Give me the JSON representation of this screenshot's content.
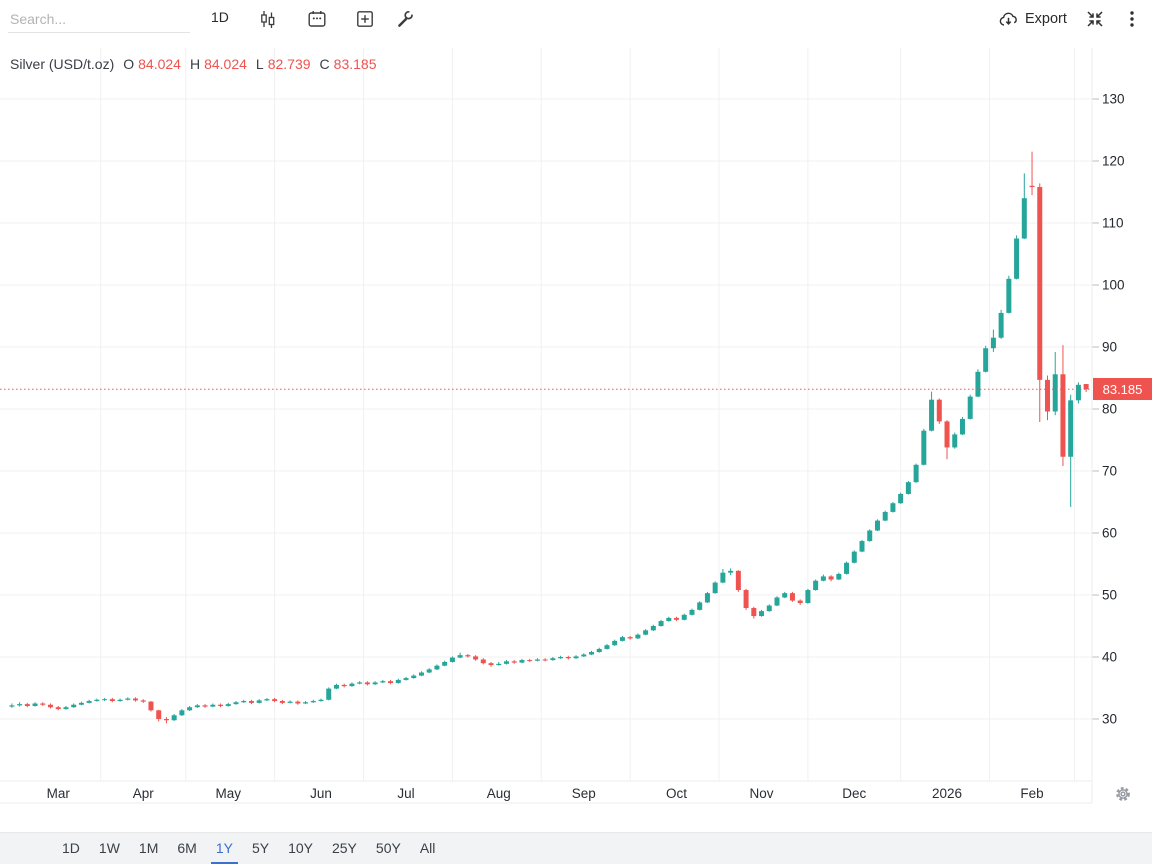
{
  "toolbar": {
    "search_placeholder": "Search...",
    "interval": "1D",
    "export_label": "Export",
    "icons": [
      "candlestick-chart-icon",
      "calendar-icon",
      "add-panel-icon",
      "tools-wrench-icon",
      "export-cloud-icon",
      "collapse-icon",
      "more-menu-icon",
      "settings-gear-icon"
    ]
  },
  "legend": {
    "symbol": "Silver (USD/t.oz)",
    "fields": [
      {
        "label": "O",
        "value": "84.024"
      },
      {
        "label": "H",
        "value": "84.024"
      },
      {
        "label": "L",
        "value": "82.739"
      },
      {
        "label": "C",
        "value": "83.185"
      }
    ]
  },
  "chart_data": {
    "type": "candlestick",
    "title": "Silver (USD/t.oz)",
    "interval": "1D",
    "timeframe": "1Y",
    "y_axis": {
      "side": "right",
      "ticks": [
        130,
        120,
        110,
        100,
        90,
        80,
        70,
        60,
        50,
        40,
        30
      ],
      "range": [
        20,
        132
      ]
    },
    "x_ticks": [
      {
        "label": "Mar",
        "i": 6
      },
      {
        "label": "Apr",
        "i": 17
      },
      {
        "label": "May",
        "i": 28
      },
      {
        "label": "Jun",
        "i": 40
      },
      {
        "label": "Jul",
        "i": 51
      },
      {
        "label": "Aug",
        "i": 63
      },
      {
        "label": "Sep",
        "i": 74
      },
      {
        "label": "Oct",
        "i": 86
      },
      {
        "label": "Nov",
        "i": 97
      },
      {
        "label": "Dec",
        "i": 109
      },
      {
        "label": "2026",
        "i": 121
      },
      {
        "label": "Feb",
        "i": 132
      }
    ],
    "last_price": 83.185,
    "last_price_label": "83.185",
    "colors": {
      "up": "#26a69a",
      "down": "#ef5350",
      "last_price_bg": "#ef5350",
      "grid": "#f0f0f0",
      "axis_text": "#24282f"
    },
    "candles": [
      [
        32.0,
        32.5,
        31.8,
        32.2
      ],
      [
        32.2,
        32.7,
        32.0,
        32.4
      ],
      [
        32.4,
        32.6,
        31.9,
        32.1
      ],
      [
        32.1,
        32.7,
        32.0,
        32.5
      ],
      [
        32.5,
        32.7,
        32.1,
        32.3
      ],
      [
        32.3,
        32.5,
        31.7,
        31.9
      ],
      [
        31.9,
        32.1,
        31.4,
        31.6
      ],
      [
        31.6,
        32.1,
        31.5,
        31.9
      ],
      [
        31.9,
        32.5,
        31.8,
        32.3
      ],
      [
        32.3,
        32.8,
        32.2,
        32.6
      ],
      [
        32.6,
        33.1,
        32.5,
        32.9
      ],
      [
        32.9,
        33.3,
        32.8,
        33.1
      ],
      [
        33.1,
        33.4,
        32.9,
        33.2
      ],
      [
        33.2,
        33.4,
        32.7,
        32.9
      ],
      [
        32.9,
        33.3,
        32.8,
        33.1
      ],
      [
        33.1,
        33.5,
        33.0,
        33.3
      ],
      [
        33.3,
        33.5,
        32.8,
        33.0
      ],
      [
        33.0,
        33.2,
        32.6,
        32.8
      ],
      [
        32.8,
        32.9,
        31.2,
        31.4
      ],
      [
        31.4,
        31.5,
        29.6,
        30.0
      ],
      [
        30.0,
        30.3,
        29.3,
        29.8
      ],
      [
        29.8,
        30.8,
        29.7,
        30.6
      ],
      [
        30.6,
        31.6,
        30.5,
        31.4
      ],
      [
        31.4,
        32.1,
        31.3,
        31.9
      ],
      [
        31.9,
        32.4,
        31.8,
        32.2
      ],
      [
        32.2,
        32.4,
        31.8,
        32.0
      ],
      [
        32.0,
        32.5,
        31.9,
        32.3
      ],
      [
        32.3,
        32.5,
        31.9,
        32.1
      ],
      [
        32.1,
        32.6,
        32.0,
        32.4
      ],
      [
        32.4,
        32.9,
        32.3,
        32.7
      ],
      [
        32.7,
        33.1,
        32.6,
        32.9
      ],
      [
        32.9,
        33.1,
        32.4,
        32.6
      ],
      [
        32.6,
        33.2,
        32.5,
        33.0
      ],
      [
        33.0,
        33.4,
        32.9,
        33.2
      ],
      [
        33.2,
        33.4,
        32.7,
        32.9
      ],
      [
        32.9,
        33.1,
        32.4,
        32.6
      ],
      [
        32.6,
        33.0,
        32.5,
        32.8
      ],
      [
        32.8,
        33.0,
        32.3,
        32.5
      ],
      [
        32.5,
        32.9,
        32.4,
        32.7
      ],
      [
        32.7,
        33.1,
        32.6,
        32.9
      ],
      [
        32.9,
        33.3,
        32.8,
        33.1
      ],
      [
        33.1,
        35.1,
        33.0,
        34.9
      ],
      [
        34.9,
        35.7,
        34.8,
        35.5
      ],
      [
        35.5,
        35.7,
        35.1,
        35.3
      ],
      [
        35.3,
        35.9,
        35.2,
        35.7
      ],
      [
        35.7,
        36.1,
        35.6,
        35.9
      ],
      [
        35.9,
        36.1,
        35.4,
        35.6
      ],
      [
        35.6,
        36.1,
        35.5,
        35.9
      ],
      [
        35.9,
        36.3,
        35.8,
        36.1
      ],
      [
        36.1,
        36.3,
        35.6,
        35.8
      ],
      [
        35.8,
        36.5,
        35.7,
        36.3
      ],
      [
        36.3,
        36.8,
        36.2,
        36.6
      ],
      [
        36.6,
        37.2,
        36.5,
        37.0
      ],
      [
        37.0,
        37.7,
        36.9,
        37.5
      ],
      [
        37.5,
        38.2,
        37.4,
        38.0
      ],
      [
        38.0,
        38.8,
        37.9,
        38.6
      ],
      [
        38.6,
        39.4,
        38.5,
        39.2
      ],
      [
        39.2,
        40.1,
        39.1,
        39.9
      ],
      [
        39.9,
        40.7,
        39.8,
        40.3
      ],
      [
        40.3,
        40.5,
        39.9,
        40.1
      ],
      [
        40.1,
        40.3,
        39.4,
        39.6
      ],
      [
        39.6,
        39.8,
        38.8,
        39.0
      ],
      [
        39.0,
        39.2,
        38.4,
        38.7
      ],
      [
        38.7,
        39.2,
        38.6,
        38.9
      ],
      [
        38.9,
        39.5,
        38.8,
        39.3
      ],
      [
        39.3,
        39.5,
        38.9,
        39.1
      ],
      [
        39.1,
        39.7,
        39.0,
        39.5
      ],
      [
        39.5,
        39.7,
        39.2,
        39.4
      ],
      [
        39.4,
        39.8,
        39.3,
        39.6
      ],
      [
        39.6,
        39.8,
        39.3,
        39.5
      ],
      [
        39.5,
        40.0,
        39.4,
        39.8
      ],
      [
        39.8,
        40.2,
        39.7,
        40.0
      ],
      [
        40.0,
        40.2,
        39.6,
        39.8
      ],
      [
        39.8,
        40.3,
        39.7,
        40.1
      ],
      [
        40.1,
        40.6,
        40.0,
        40.4
      ],
      [
        40.4,
        41.0,
        40.3,
        40.8
      ],
      [
        40.8,
        41.5,
        40.7,
        41.3
      ],
      [
        41.3,
        42.1,
        41.2,
        41.9
      ],
      [
        41.9,
        42.8,
        41.8,
        42.6
      ],
      [
        42.6,
        43.4,
        42.5,
        43.2
      ],
      [
        43.2,
        43.4,
        42.8,
        43.0
      ],
      [
        43.0,
        43.8,
        42.9,
        43.6
      ],
      [
        43.6,
        44.5,
        43.5,
        44.3
      ],
      [
        44.3,
        45.2,
        44.2,
        45.0
      ],
      [
        45.0,
        46.0,
        44.9,
        45.8
      ],
      [
        45.8,
        46.5,
        45.7,
        46.3
      ],
      [
        46.3,
        46.5,
        45.8,
        46.0
      ],
      [
        46.0,
        47.0,
        45.9,
        46.8
      ],
      [
        46.8,
        47.8,
        46.7,
        47.6
      ],
      [
        47.6,
        49.0,
        47.5,
        48.8
      ],
      [
        48.8,
        50.5,
        48.7,
        50.3
      ],
      [
        50.3,
        52.2,
        50.2,
        52.0
      ],
      [
        52.0,
        54.2,
        51.9,
        53.6
      ],
      [
        53.6,
        54.3,
        53.2,
        53.9
      ],
      [
        53.9,
        54.0,
        50.5,
        50.8
      ],
      [
        50.8,
        51.0,
        47.6,
        47.9
      ],
      [
        47.9,
        48.1,
        46.2,
        46.6
      ],
      [
        46.6,
        47.6,
        46.5,
        47.4
      ],
      [
        47.4,
        48.5,
        47.3,
        48.3
      ],
      [
        48.3,
        49.8,
        48.2,
        49.6
      ],
      [
        49.6,
        50.5,
        49.5,
        50.3
      ],
      [
        50.3,
        50.5,
        48.9,
        49.1
      ],
      [
        49.1,
        49.3,
        48.4,
        48.7
      ],
      [
        48.7,
        51.0,
        48.6,
        50.8
      ],
      [
        50.8,
        52.5,
        50.7,
        52.3
      ],
      [
        52.3,
        53.3,
        52.2,
        53.0
      ],
      [
        53.0,
        53.2,
        52.2,
        52.5
      ],
      [
        52.5,
        53.6,
        52.4,
        53.4
      ],
      [
        53.4,
        55.4,
        53.3,
        55.2
      ],
      [
        55.2,
        57.2,
        55.1,
        57.0
      ],
      [
        57.0,
        58.9,
        56.9,
        58.7
      ],
      [
        58.7,
        60.6,
        58.6,
        60.4
      ],
      [
        60.4,
        62.2,
        60.3,
        62.0
      ],
      [
        62.0,
        63.6,
        61.9,
        63.4
      ],
      [
        63.4,
        65.0,
        63.3,
        64.8
      ],
      [
        64.8,
        66.5,
        64.7,
        66.3
      ],
      [
        66.3,
        68.4,
        66.2,
        68.2
      ],
      [
        68.2,
        71.2,
        68.1,
        71.0
      ],
      [
        71.0,
        76.8,
        70.9,
        76.5
      ],
      [
        76.5,
        82.8,
        76.4,
        81.5
      ],
      [
        81.5,
        81.7,
        77.6,
        78.0
      ],
      [
        78.0,
        78.2,
        71.9,
        73.8
      ],
      [
        73.8,
        76.2,
        73.6,
        75.9
      ],
      [
        75.9,
        78.7,
        75.8,
        78.4
      ],
      [
        78.4,
        82.3,
        78.3,
        82.0
      ],
      [
        82.0,
        86.4,
        81.9,
        86.0
      ],
      [
        86.0,
        90.2,
        85.9,
        89.8
      ],
      [
        89.8,
        92.8,
        89.2,
        91.5
      ],
      [
        91.5,
        96.0,
        91.3,
        95.5
      ],
      [
        95.5,
        101.5,
        95.4,
        101.0
      ],
      [
        101.0,
        108.0,
        100.9,
        107.5
      ],
      [
        107.5,
        118.0,
        107.4,
        114.0
      ],
      [
        116.0,
        121.5,
        114.5,
        115.8
      ],
      [
        115.8,
        116.4,
        77.9,
        84.7
      ],
      [
        84.7,
        85.4,
        78.2,
        79.6
      ],
      [
        79.6,
        89.2,
        79.0,
        85.6
      ],
      [
        85.6,
        90.3,
        70.8,
        72.3
      ],
      [
        72.3,
        82.3,
        64.2,
        81.4
      ],
      [
        81.4,
        84.3,
        80.9,
        83.9
      ],
      [
        84.024,
        84.024,
        82.739,
        83.185
      ]
    ]
  },
  "range_bar": {
    "options": [
      "1D",
      "1W",
      "1M",
      "6M",
      "1Y",
      "5Y",
      "10Y",
      "25Y",
      "50Y",
      "All"
    ],
    "active": "1Y",
    "active_color": "#3b70d1"
  }
}
